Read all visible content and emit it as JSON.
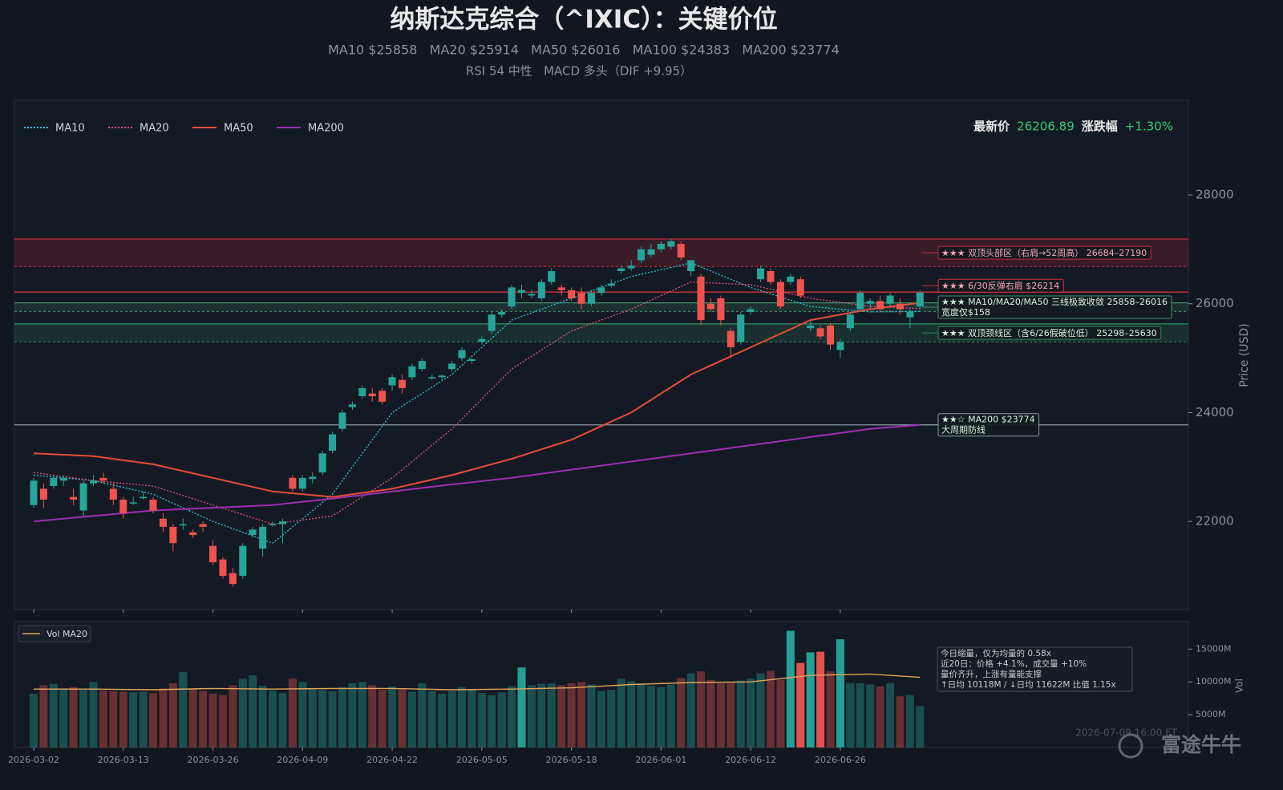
{
  "chart_data": {
    "type": "candlestick",
    "title": "纳斯达克综合（^IXIC）：关键价位",
    "subtitle": "MA10 $25858   MA20 $25914   MA50 $26016   MA100 $24383   MA200 $23774",
    "subtitle2": "RSI 54 中性   MACD 多头（DIF +9.95）",
    "last_price_label": "最新价",
    "last_price": 26206.89,
    "change_label": "涨跌幅",
    "change": "+1.30%",
    "ylabel": "Price (USD)",
    "vol_ylabel": "Vol",
    "xlim": [
      -1.93,
      115.95
    ],
    "xticks": [
      {
        "value": 0,
        "label": "2026-03-02"
      },
      {
        "value": 9,
        "label": "2026-03-13"
      },
      {
        "value": 18,
        "label": "2026-03-26"
      },
      {
        "value": 27,
        "label": "2026-04-09"
      },
      {
        "value": 36,
        "label": "2026-04-22"
      },
      {
        "value": 45,
        "label": "2026-05-05"
      },
      {
        "value": 54,
        "label": "2026-05-18"
      },
      {
        "value": 63,
        "label": "2026-06-01"
      },
      {
        "value": 72,
        "label": "2026-06-12"
      },
      {
        "value": 81,
        "label": "2026-06-26"
      }
    ],
    "ylim": [
      20380,
      29740
    ],
    "yticks": [
      22000,
      24000,
      26000,
      28000
    ],
    "vol_ylim": [
      0,
      19200
    ],
    "vol_yticks": [
      {
        "value": 5000,
        "label": "5000M"
      },
      {
        "value": 10000,
        "label": "10000M"
      },
      {
        "value": 15000,
        "label": "15000M"
      }
    ],
    "up_color": "#26a69a",
    "down_color": "#ef5350",
    "candles": [
      [
        22300,
        22800,
        22250,
        22750
      ],
      [
        22600,
        22700,
        22250,
        22400
      ],
      [
        22650,
        22850,
        22600,
        22800
      ],
      [
        22750,
        22850,
        22650,
        22800
      ],
      [
        22450,
        22600,
        22300,
        22400
      ],
      [
        22200,
        22750,
        22100,
        22700
      ],
      [
        22700,
        22850,
        22650,
        22750
      ],
      [
        22800,
        22900,
        22700,
        22750
      ],
      [
        22600,
        22700,
        22300,
        22400
      ],
      [
        22400,
        22450,
        22050,
        22150
      ],
      [
        22350,
        22450,
        22300,
        22350
      ],
      [
        22450,
        22550,
        22400,
        22450
      ],
      [
        22400,
        22450,
        22150,
        22200
      ],
      [
        22050,
        22150,
        21800,
        21900
      ],
      [
        21900,
        21950,
        21450,
        21600
      ],
      [
        21950,
        22050,
        21850,
        21950
      ],
      [
        21800,
        21850,
        21700,
        21750
      ],
      [
        21950,
        22000,
        21800,
        21900
      ],
      [
        21550,
        21650,
        21200,
        21250
      ],
      [
        21300,
        21350,
        20950,
        21000
      ],
      [
        21050,
        21150,
        20800,
        20850
      ],
      [
        21000,
        21600,
        20950,
        21550
      ],
      [
        21750,
        21900,
        21700,
        21850
      ],
      [
        21500,
        21950,
        21350,
        21900
      ],
      [
        21950,
        22000,
        21900,
        21950
      ],
      [
        21950,
        22050,
        21600,
        22000
      ],
      [
        22800,
        22850,
        22550,
        22600
      ],
      [
        22600,
        22850,
        22550,
        22800
      ],
      [
        22780,
        22900,
        22700,
        22820
      ],
      [
        22900,
        23300,
        22850,
        23250
      ],
      [
        23300,
        23650,
        23250,
        23600
      ],
      [
        23700,
        24050,
        23650,
        24000
      ],
      [
        24100,
        24200,
        24050,
        24150
      ],
      [
        24300,
        24500,
        24250,
        24450
      ],
      [
        24350,
        24450,
        24200,
        24300
      ],
      [
        24400,
        24450,
        24150,
        24200
      ],
      [
        24500,
        24700,
        24400,
        24650
      ],
      [
        24600,
        24700,
        24350,
        24450
      ],
      [
        24650,
        24900,
        24600,
        24850
      ],
      [
        24800,
        25000,
        24750,
        24950
      ],
      [
        24650,
        24700,
        24600,
        24650
      ],
      [
        24650,
        24700,
        24600,
        24680
      ],
      [
        24800,
        24950,
        24750,
        24900
      ],
      [
        25000,
        25200,
        24950,
        25150
      ],
      [
        24950,
        25000,
        24900,
        24980
      ],
      [
        25300,
        25400,
        25250,
        25350
      ],
      [
        25500,
        25850,
        25450,
        25800
      ],
      [
        25800,
        25900,
        25750,
        25850
      ],
      [
        25950,
        26350,
        25900,
        26300
      ],
      [
        26200,
        26350,
        26100,
        26250
      ],
      [
        26150,
        26250,
        26100,
        26180
      ],
      [
        26100,
        26450,
        26050,
        26400
      ],
      [
        26400,
        26650,
        26350,
        26600
      ],
      [
        26300,
        26350,
        26150,
        26250
      ],
      [
        26250,
        26300,
        26050,
        26100
      ],
      [
        26200,
        26300,
        25900,
        26000
      ],
      [
        26000,
        26250,
        25950,
        26200
      ],
      [
        26200,
        26350,
        26150,
        26300
      ],
      [
        26330,
        26450,
        26300,
        26370
      ],
      [
        26600,
        26700,
        26550,
        26650
      ],
      [
        26650,
        26800,
        26600,
        26700
      ],
      [
        26800,
        27050,
        26750,
        27000
      ],
      [
        26900,
        27100,
        26850,
        27000
      ],
      [
        27000,
        27150,
        26950,
        27100
      ],
      [
        27050,
        27200,
        27000,
        27150
      ],
      [
        27100,
        27150,
        26800,
        26850
      ],
      [
        26600,
        26800,
        26500,
        26800
      ],
      [
        26500,
        26550,
        25600,
        25700
      ],
      [
        26000,
        26100,
        25850,
        25900
      ],
      [
        26100,
        26150,
        25600,
        25700
      ],
      [
        25500,
        25550,
        25000,
        25200
      ],
      [
        25300,
        25850,
        25250,
        25800
      ],
      [
        25850,
        25950,
        25800,
        25900
      ],
      [
        26450,
        26700,
        26400,
        26650
      ],
      [
        26600,
        26650,
        26350,
        26400
      ],
      [
        26400,
        26450,
        25900,
        25950
      ],
      [
        26400,
        26550,
        26350,
        26500
      ],
      [
        26450,
        26500,
        26100,
        26150
      ],
      [
        25550,
        25700,
        25500,
        25600
      ],
      [
        25550,
        25600,
        25350,
        25400
      ],
      [
        25600,
        25650,
        25150,
        25250
      ],
      [
        25150,
        25350,
        25000,
        25300
      ],
      [
        25550,
        25850,
        25500,
        25800
      ],
      [
        25900,
        26250,
        25850,
        26200
      ],
      [
        26000,
        26100,
        25900,
        26050
      ],
      [
        26050,
        26150,
        25850,
        25900
      ],
      [
        26000,
        26200,
        25950,
        26150
      ],
      [
        26000,
        26100,
        25800,
        25900
      ],
      [
        25750,
        25900,
        25550,
        25850
      ],
      [
        25950,
        26250,
        25900,
        26206.89
      ]
    ],
    "volume": [
      8200,
      9500,
      9700,
      9000,
      9200,
      8800,
      10000,
      8700,
      8600,
      8500,
      8400,
      8500,
      8300,
      9000,
      9800,
      11500,
      9000,
      8600,
      8200,
      8000,
      9500,
      10500,
      11000,
      9400,
      8700,
      8300,
      10500,
      10000,
      9000,
      8800,
      8600,
      9200,
      9800,
      10000,
      9500,
      8800,
      9300,
      9000,
      8500,
      9800,
      8600,
      8200,
      8600,
      9200,
      8800,
      8300,
      8000,
      8400,
      9300,
      12200,
      9500,
      9700,
      9800,
      9500,
      9800,
      10000,
      9600,
      8600,
      8800,
      10500,
      10100,
      9800,
      9400,
      9200,
      9600,
      10600,
      11300,
      11600,
      10300,
      9800,
      10000,
      10200,
      10500,
      11300,
      11700,
      10300,
      17800,
      12900,
      14500,
      14600,
      11600,
      16500,
      9800,
      9800,
      9600,
      9300,
      9800,
      7800,
      8000,
      6300
    ],
    "volume_highlight": [
      49,
      76,
      77,
      78,
      79,
      81
    ],
    "vol_ma": {
      "name": "Vol MA20",
      "color": "#e0a458",
      "x": [
        0,
        6,
        12,
        18,
        24,
        30,
        36,
        42,
        48,
        54,
        60,
        66,
        72,
        78,
        84,
        89
      ],
      "values": [
        8900,
        8900,
        8800,
        9000,
        8900,
        9000,
        9000,
        8800,
        8900,
        9100,
        9600,
        9900,
        10000,
        11000,
        11200,
        10700
      ]
    },
    "series": [
      {
        "name": "MA10",
        "color": "#26c6da",
        "dash": "2,2",
        "x": [
          0,
          6,
          12,
          18,
          24,
          30,
          36,
          42,
          48,
          54,
          60,
          66,
          72,
          78,
          84,
          89
        ],
        "values": [
          22850,
          22750,
          22500,
          22000,
          21600,
          22500,
          24000,
          24700,
          25700,
          26100,
          26500,
          26750,
          26300,
          25950,
          25850,
          25858
        ]
      },
      {
        "name": "MA20",
        "color": "#e0507e",
        "dash": "2,2",
        "x": [
          0,
          6,
          12,
          18,
          24,
          30,
          36,
          42,
          48,
          54,
          60,
          66,
          72,
          78,
          84,
          89
        ],
        "values": [
          22900,
          22750,
          22650,
          22300,
          21950,
          22100,
          22800,
          23700,
          24800,
          25500,
          25900,
          26400,
          26350,
          26100,
          25950,
          25914
        ]
      },
      {
        "name": "MA50",
        "color": "#e74c3c",
        "dash": "",
        "x": [
          0,
          6,
          12,
          18,
          24,
          30,
          36,
          42,
          48,
          54,
          60,
          66,
          72,
          78,
          84,
          89
        ],
        "values": [
          23250,
          23200,
          23050,
          22800,
          22550,
          22450,
          22600,
          22850,
          23150,
          23500,
          24000,
          24700,
          25200,
          25700,
          25900,
          26016
        ]
      },
      {
        "name": "MA200",
        "color": "#9b30b0",
        "dash": "",
        "x": [
          0,
          6,
          12,
          18,
          24,
          30,
          36,
          42,
          48,
          54,
          60,
          66,
          72,
          78,
          84,
          89
        ],
        "values": [
          22000,
          22100,
          22200,
          22250,
          22300,
          22420,
          22550,
          22680,
          22800,
          22950,
          23100,
          23250,
          23400,
          23550,
          23700,
          23774
        ]
      }
    ],
    "levels": [
      {
        "label": "★★★ 双顶头部区（右肩→52周高） 26684–27190",
        "low": 26684,
        "high": 27190,
        "color": "#c8283e",
        "text_color": "#f2a6b4"
      },
      {
        "label": "★★★ 6/30反弹右肩 $26214",
        "low": 26214,
        "high": 26214,
        "color": "#d0303f",
        "text_color": "#f2a6b4"
      },
      {
        "label": "★★★ MA10/MA20/MA50 三线极致收敛 25858–26016",
        "label2": "宽度仅$158",
        "low": 25858,
        "high": 26016,
        "color": "#3f8f6a",
        "text_color": "#d6f2dc"
      },
      {
        "label": "★★★ 双顶颈线区（含6/26假破位低） 25298–25630",
        "low": 25298,
        "high": 25630,
        "color": "#2e8a5e",
        "text_color": "#d6f2dc"
      },
      {
        "label": "★★☆ MA200 $23774",
        "label2": "大周期防线",
        "low": 23774,
        "high": 23774,
        "color": "#8a9aa8",
        "text_color": "#d6f2dc"
      }
    ],
    "info_lines": [
      "今日缩量，仅为均量的 0.58x",
      "近20日：价格 +4.1%，成交量 +10%",
      "量价齐升，上涨有量能支撑",
      "↑日均 10118M  /  ↓日均 11622M  比值 1.15x"
    ],
    "footer": "2026-07-09 16:00 ET",
    "watermark": "富途牛牛"
  }
}
